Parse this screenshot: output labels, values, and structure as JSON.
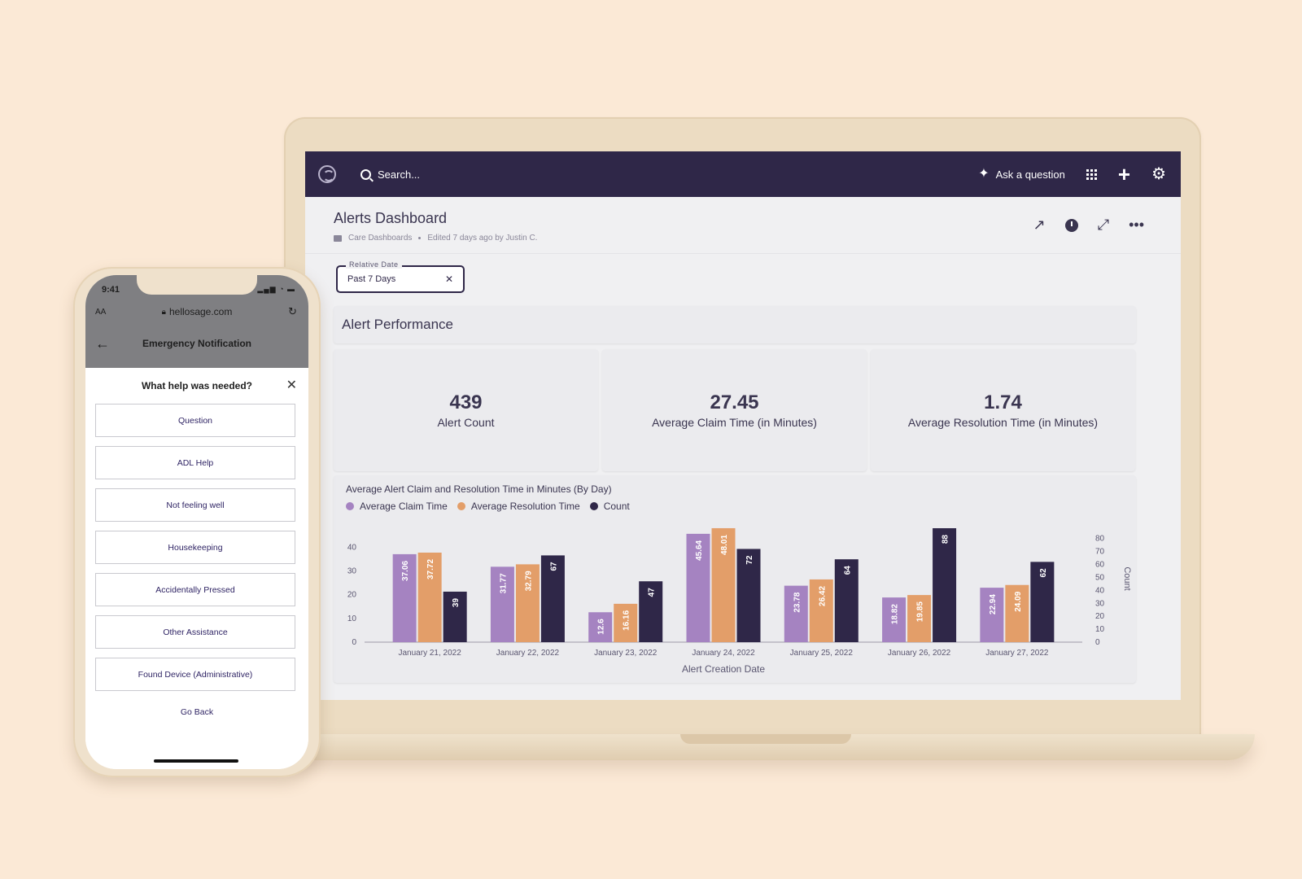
{
  "laptop": {
    "topbar": {
      "search_placeholder": "Search...",
      "ask_label": "Ask a question"
    },
    "header": {
      "title": "Alerts Dashboard",
      "collection": "Care Dashboards",
      "edited": "Edited 7 days ago by Justin C."
    },
    "filter": {
      "label": "Relative Date",
      "value": "Past 7 Days"
    },
    "section_title": "Alert Performance",
    "metrics": [
      {
        "value": "439",
        "label": "Alert Count"
      },
      {
        "value": "27.45",
        "label": "Average Claim Time (in Minutes)"
      },
      {
        "value": "1.74",
        "label": "Average Resolution Time (in Minutes)"
      }
    ],
    "colors": {
      "claim": "#a583c1",
      "resolution": "#e39e69",
      "count": "#2f2748",
      "topbar": "#2f2748"
    }
  },
  "chart_data": {
    "type": "bar",
    "title": "Average Alert Claim and Resolution Time in Minutes (By Day)",
    "xlabel": "Alert Creation Date",
    "ylabel_left": "",
    "ylabel_right": "Count",
    "categories": [
      "January 21, 2022",
      "January 22, 2022",
      "January 23, 2022",
      "January 24, 2022",
      "January 25, 2022",
      "January 26, 2022",
      "January 27, 2022"
    ],
    "series": [
      {
        "name": "Average Claim Time",
        "axis": "left",
        "color": "#a583c1",
        "values": [
          37.06,
          31.77,
          12.6,
          45.64,
          23.78,
          18.82,
          22.94
        ],
        "labels": [
          "37.06",
          "31.77",
          "12.6",
          "45.64",
          "23.78",
          "18.82",
          "22.94"
        ]
      },
      {
        "name": "Average Resolution Time",
        "axis": "left",
        "color": "#e39e69",
        "values": [
          37.72,
          32.79,
          16.16,
          48.01,
          26.42,
          19.85,
          24.09
        ],
        "labels": [
          "37.72",
          "32.79",
          "16.16",
          "48.01",
          "26.42",
          "19.85",
          "24.09"
        ]
      },
      {
        "name": "Count",
        "axis": "right",
        "color": "#2f2748",
        "values": [
          39,
          67,
          47,
          72,
          64,
          88,
          62
        ],
        "labels": [
          "39",
          "67",
          "47",
          "72",
          "64",
          "88",
          "62"
        ]
      }
    ],
    "left_ticks": [
      "0",
      "10",
      "20",
      "30",
      "40"
    ],
    "right_ticks": [
      "0",
      "10",
      "20",
      "30",
      "40",
      "50",
      "60",
      "70",
      "80"
    ],
    "ylim_left": [
      0,
      48
    ],
    "ylim_right": [
      0,
      88
    ]
  },
  "phone": {
    "time": "9:41",
    "url_aa": "AA",
    "url": "hellosage.com",
    "nav_title": "Emergency Notification",
    "sheet_title": "What help was needed?",
    "options": [
      "Question",
      "ADL Help",
      "Not feeling well",
      "Housekeeping",
      "Accidentally Pressed",
      "Other Assistance",
      "Found Device (Administrative)"
    ],
    "go_back": "Go Back"
  }
}
